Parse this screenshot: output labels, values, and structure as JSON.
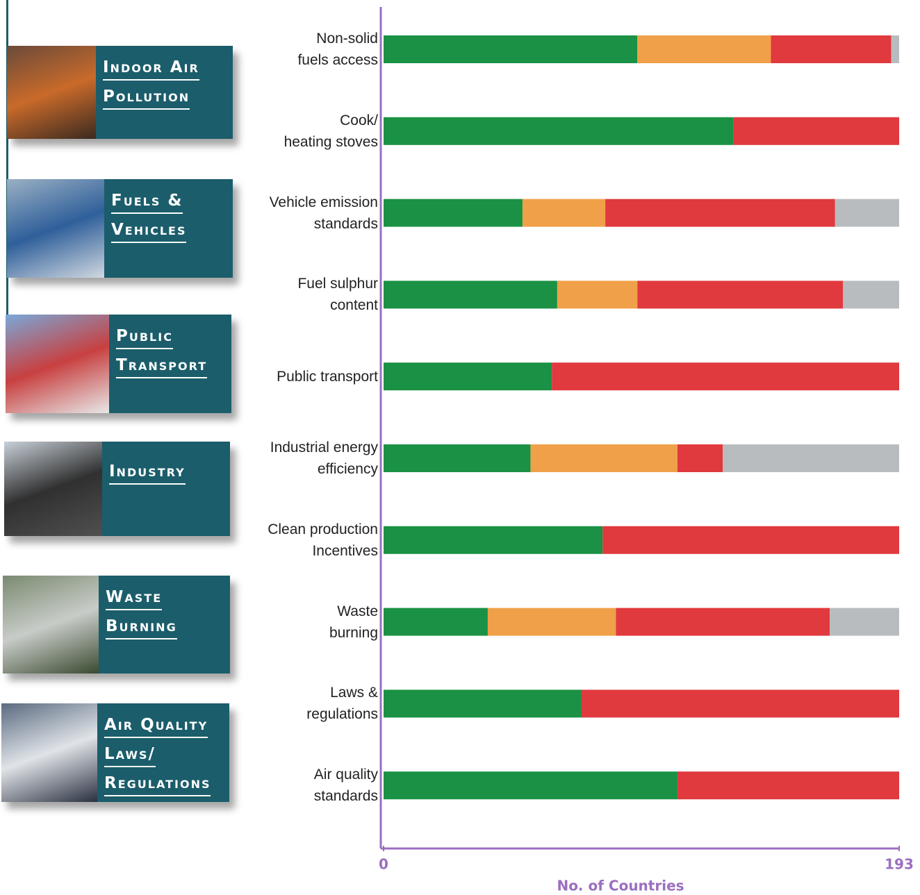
{
  "panels": [
    {
      "lines": [
        "Indoor Air",
        "Pollution"
      ]
    },
    {
      "lines": [
        "Fuels &",
        "Vehicles"
      ]
    },
    {
      "lines": [
        "Public",
        "Transport"
      ]
    },
    {
      "lines": [
        "Industry"
      ]
    },
    {
      "lines": [
        "Waste",
        "Burning"
      ]
    },
    {
      "lines": [
        "Air Quality",
        "Laws/",
        "Regulations"
      ]
    }
  ],
  "chart_data": {
    "type": "stacked-barh",
    "x_label": "No. of Countries",
    "categories": [
      [
        "Non-solid",
        "fuels access"
      ],
      [
        "Cook/",
        "heating stoves"
      ],
      [
        "Vehicle emission",
        "standards"
      ],
      [
        "Fuel sulphur",
        "content"
      ],
      [
        "Public transport"
      ],
      [
        "Industrial energy",
        "efficiency"
      ],
      [
        "Clean production",
        "Incentives"
      ],
      [
        "Waste",
        "burning"
      ],
      [
        "Laws &",
        "regulations"
      ],
      [
        "Air quality",
        "standards"
      ]
    ],
    "series": [
      {
        "color": "#1a9144",
        "values": [
          95,
          131,
          52,
          65,
          63,
          55,
          82,
          39,
          74,
          110
        ]
      },
      {
        "color": "#f0a048",
        "values": [
          50,
          0,
          31,
          30,
          0,
          55,
          0,
          48,
          0,
          0
        ]
      },
      {
        "color": "#e0393e",
        "values": [
          45,
          62,
          86,
          77,
          130,
          17,
          111,
          80,
          119,
          83
        ]
      },
      {
        "color": "#b9bcbf",
        "values": [
          3,
          0,
          24,
          21,
          0,
          66,
          0,
          26,
          0,
          0
        ]
      }
    ],
    "xlim": [
      0,
      193
    ],
    "xticks": [
      0,
      193
    ]
  }
}
